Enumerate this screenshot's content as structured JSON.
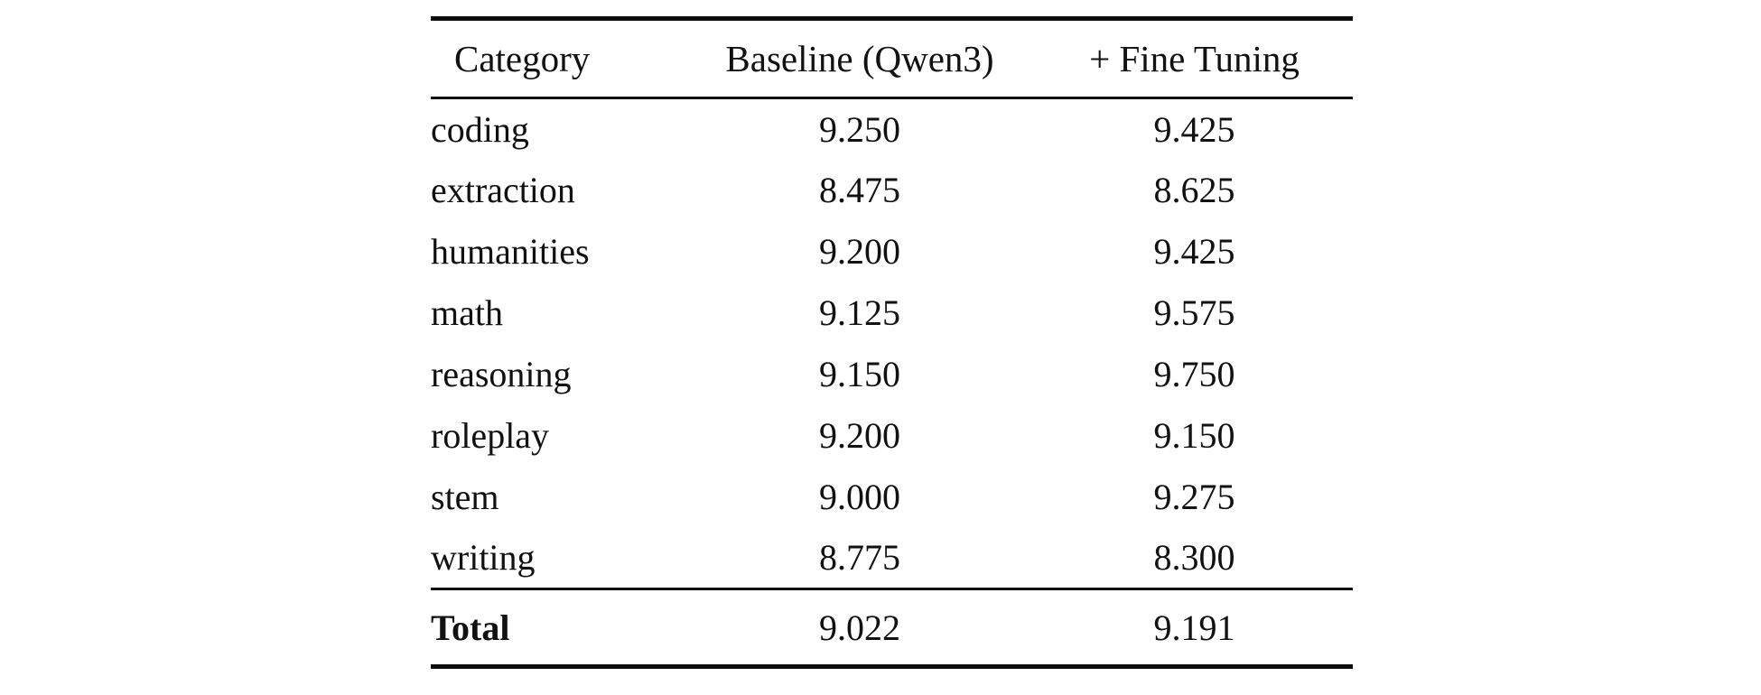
{
  "colors": {
    "text": "#111111",
    "background": "#ffffff",
    "rule": "#0d0d0d"
  },
  "table": {
    "columns": {
      "category": "Category",
      "baseline": "Baseline (Qwen3)",
      "fine_tuning": "+ Fine Tuning"
    },
    "rows": [
      {
        "category": "coding",
        "baseline": "9.250",
        "fine_tuning": "9.425",
        "fine_tuning_bold": true
      },
      {
        "category": "extraction",
        "baseline": "8.475",
        "fine_tuning": "8.625",
        "fine_tuning_bold": false
      },
      {
        "category": "humanities",
        "baseline": "9.200",
        "fine_tuning": "9.425",
        "fine_tuning_bold": false
      },
      {
        "category": "math",
        "baseline": "9.125",
        "fine_tuning": "9.575",
        "fine_tuning_bold": true
      },
      {
        "category": "reasoning",
        "baseline": "9.150",
        "fine_tuning": "9.750",
        "fine_tuning_bold": true
      },
      {
        "category": "roleplay",
        "baseline": "9.200",
        "fine_tuning": "9.150",
        "fine_tuning_bold": false
      },
      {
        "category": "stem",
        "baseline": "9.000",
        "fine_tuning": "9.275",
        "fine_tuning_bold": true
      },
      {
        "category": "writing",
        "baseline": "8.775",
        "fine_tuning": "8.300",
        "fine_tuning_bold": false
      }
    ],
    "total": {
      "category": "Total",
      "baseline": "9.022",
      "fine_tuning": "9.191"
    }
  },
  "chart_data": {
    "type": "table",
    "title": "",
    "categories": [
      "coding",
      "extraction",
      "humanities",
      "math",
      "reasoning",
      "roleplay",
      "stem",
      "writing",
      "Total"
    ],
    "series": [
      {
        "name": "Baseline (Qwen3)",
        "values": [
          9.25,
          8.475,
          9.2,
          9.125,
          9.15,
          9.2,
          9.0,
          8.775,
          9.022
        ]
      },
      {
        "name": "+ Fine Tuning",
        "values": [
          9.425,
          8.625,
          9.425,
          9.575,
          9.75,
          9.15,
          9.275,
          8.3,
          9.191
        ]
      }
    ]
  }
}
